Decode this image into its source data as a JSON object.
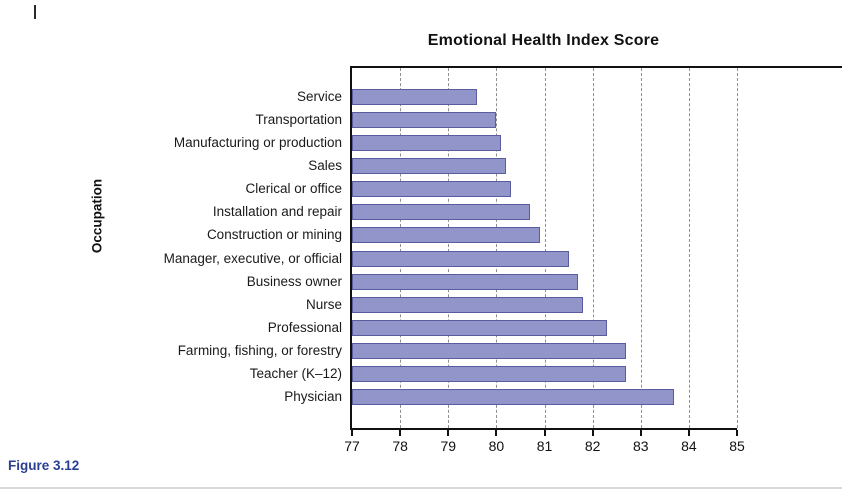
{
  "figure": {
    "caption": "Figure 3.12"
  },
  "colors": {
    "bar_fill": "#9195ca",
    "bar_border": "#595d9e",
    "axis": "#111111",
    "gridline": "#8f8f8f",
    "caption_blue": "#2a3f92"
  },
  "chart_data": {
    "type": "bar",
    "orientation": "horizontal",
    "title": "Emotional Health Index Score",
    "xlabel": "",
    "ylabel": "Occupation",
    "xlim": [
      77,
      85
    ],
    "xticks": [
      77,
      78,
      79,
      80,
      81,
      82,
      83,
      84,
      85
    ],
    "grid": "vertical-dashed",
    "legend": "none",
    "categories": [
      "Service",
      "Transportation",
      "Manufacturing or production",
      "Sales",
      "Clerical or office",
      "Installation and repair",
      "Construction or mining",
      "Manager, executive, or official",
      "Business owner",
      "Nurse",
      "Professional",
      "Farming, fishing, or forestry",
      "Teacher (K–12)",
      "Physician"
    ],
    "values": [
      79.6,
      80.0,
      80.1,
      80.2,
      80.3,
      80.7,
      80.9,
      81.5,
      81.7,
      81.8,
      82.3,
      82.7,
      82.7,
      83.7
    ]
  }
}
